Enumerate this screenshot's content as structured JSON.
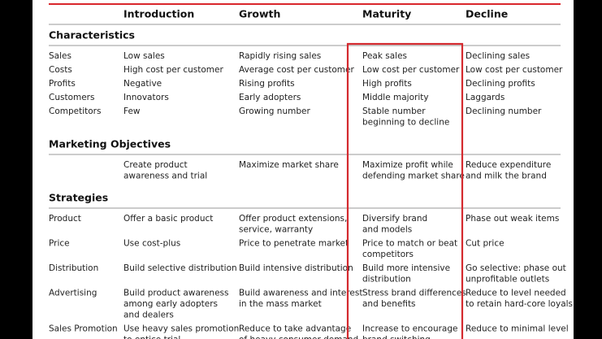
{
  "header": {
    "columns": [
      "Introduction",
      "Growth",
      "Maturity",
      "Decline"
    ]
  },
  "sections": [
    {
      "title": "Characteristics",
      "rows": [
        {
          "label": "Sales",
          "cells": [
            [
              "Low sales"
            ],
            [
              "Rapidly rising sales"
            ],
            [
              "Peak sales"
            ],
            [
              "Declining sales"
            ]
          ]
        },
        {
          "label": "Costs",
          "cells": [
            [
              "High cost per customer"
            ],
            [
              "Average cost per customer"
            ],
            [
              "Low cost per customer"
            ],
            [
              "Low cost per customer"
            ]
          ]
        },
        {
          "label": "Profits",
          "cells": [
            [
              "Negative"
            ],
            [
              "Rising profits"
            ],
            [
              "High profits"
            ],
            [
              "Declining profits"
            ]
          ]
        },
        {
          "label": "Customers",
          "cells": [
            [
              "Innovators"
            ],
            [
              "Early adopters"
            ],
            [
              "Middle majority"
            ],
            [
              "Laggards"
            ]
          ]
        },
        {
          "label": "Competitors",
          "cells": [
            [
              "Few"
            ],
            [
              "Growing number"
            ],
            [
              "Stable number",
              "beginning to decline"
            ],
            [
              "Declining number"
            ]
          ]
        }
      ]
    },
    {
      "title": "Marketing Objectives",
      "rows": [
        {
          "label": null,
          "cells": [
            [
              "Create product",
              "awareness and trial"
            ],
            [
              "Maximize market share"
            ],
            [
              "Maximize profit while",
              "defending market share"
            ],
            [
              "Reduce expenditure",
              "and milk the brand"
            ]
          ]
        }
      ]
    },
    {
      "title": "Strategies",
      "rows": [
        {
          "label": "Product",
          "cells": [
            [
              "Offer a basic product"
            ],
            [
              "Offer product extensions,",
              "service, warranty"
            ],
            [
              "Diversify brand",
              "and models"
            ],
            [
              "Phase out weak items"
            ]
          ]
        },
        {
          "label": "Price",
          "cells": [
            [
              "Use cost-plus"
            ],
            [
              "Price to penetrate market"
            ],
            [
              "Price to match or beat",
              "competitors"
            ],
            [
              "Cut price"
            ]
          ]
        },
        {
          "label": "Distribution",
          "cells": [
            [
              "Build selective distribution"
            ],
            [
              "Build intensive distribution"
            ],
            [
              "Build more intensive",
              "distribution"
            ],
            [
              "Go selective: phase out",
              "unprofitable outlets"
            ]
          ]
        },
        {
          "label": "Advertising",
          "cells": [
            [
              "Build product awareness",
              "among early adopters",
              "and dealers"
            ],
            [
              "Build awareness and interest",
              "in the mass market"
            ],
            [
              "Stress brand differences",
              "and benefits"
            ],
            [
              "Reduce to level needed",
              "to retain hard-core loyals"
            ]
          ]
        },
        {
          "label": "Sales Promotion",
          "cells": [
            [
              "Use heavy sales promotion",
              "to entice trial"
            ],
            [
              "Reduce to take advantage",
              "of heavy consumer demand"
            ],
            [
              "Increase to encourage",
              "brand switching"
            ],
            [
              "Reduce to minimal level"
            ]
          ]
        }
      ]
    }
  ]
}
